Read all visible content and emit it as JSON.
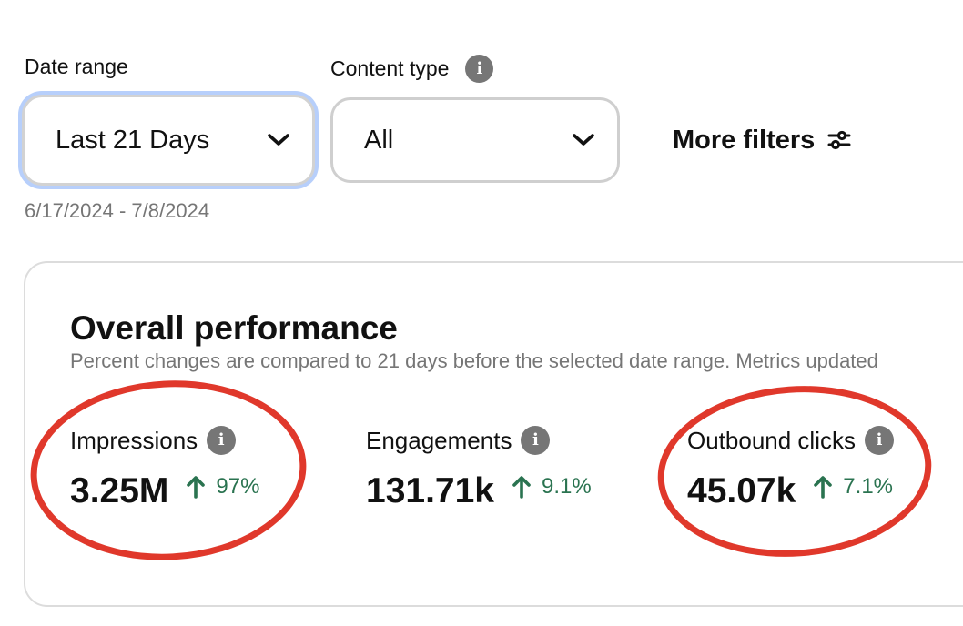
{
  "filters": {
    "date_range": {
      "label": "Date range",
      "value": "Last 21 Days",
      "dates": "6/17/2024 - 7/8/2024"
    },
    "content_type": {
      "label": "Content type",
      "value": "All"
    },
    "more_filters_label": "More filters"
  },
  "overall": {
    "title": "Overall performance",
    "subtitle": "Percent changes are compared to 21 days before the selected date range. Metrics updated",
    "metrics": [
      {
        "label": "Impressions",
        "value": "3.25M",
        "change": "97%"
      },
      {
        "label": "Engagements",
        "value": "131.71k",
        "change": "9.1%"
      },
      {
        "label": "Outbound clicks",
        "value": "45.07k",
        "change": "7.1%"
      }
    ]
  },
  "colors": {
    "positive_change": "#2a7350",
    "info_icon": "#767676",
    "annotation_circle": "#e0382b",
    "focus_ring": "#b7cffb"
  },
  "icons": {
    "info": "info-icon",
    "chevron": "chevron-down-icon",
    "sliders": "sliders-icon",
    "arrow_up": "arrow-up-icon"
  }
}
